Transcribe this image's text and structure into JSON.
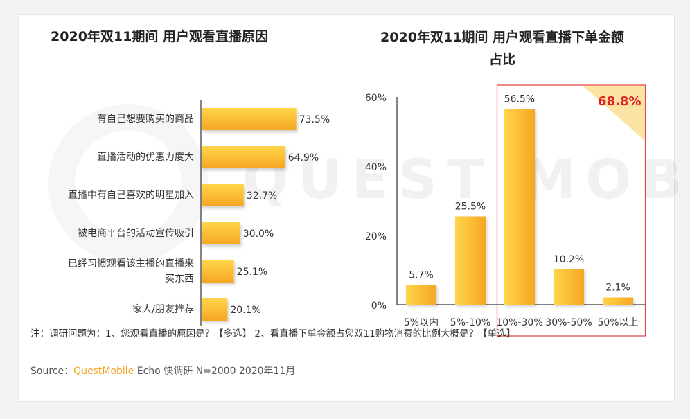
{
  "chart_data": [
    {
      "type": "bar",
      "orientation": "horizontal",
      "title": "2020年双11期间 用户观看直播原因",
      "categories": [
        "有自己想要购买的商品",
        "直播活动的优惠力度大",
        "直播中有自己喜欢的明星加入",
        "被电商平台的活动宣传吸引",
        "已经习惯观看该主播的直播来买东西",
        "家人/朋友推荐"
      ],
      "category_lines": [
        [
          "有自己想要购买的商品"
        ],
        [
          "直播活动的优惠力度大"
        ],
        [
          "直播中有自己喜欢的明星加入"
        ],
        [
          "被电商平台的活动宣传吸引"
        ],
        [
          "已经习惯观看该主播的直播来",
          "买东西"
        ],
        [
          "家人/朋友推荐"
        ]
      ],
      "values": [
        73.5,
        64.9,
        32.7,
        30.0,
        25.1,
        20.1
      ],
      "value_labels": [
        "73.5%",
        "64.9%",
        "32.7%",
        "30.0%",
        "25.1%",
        "20.1%"
      ],
      "xlim": [
        0,
        100
      ],
      "grid": false
    },
    {
      "type": "bar",
      "orientation": "vertical",
      "title": "2020年双11期间 用户观看直播下单金额占比",
      "title_lines": [
        "2020年双11期间 用户观看直播下单金额",
        "占比"
      ],
      "categories": [
        "5%以内",
        "5%-10%",
        "10%-30%",
        "30%-50%",
        "50%以上"
      ],
      "values": [
        5.7,
        25.5,
        56.5,
        10.2,
        2.1
      ],
      "value_labels": [
        "5.7%",
        "25.5%",
        "56.5%",
        "10.2%",
        "2.1%"
      ],
      "yticks": [
        "0%",
        "20%",
        "40%",
        "60%"
      ],
      "ylim": [
        0,
        60
      ],
      "grid": false,
      "highlight": {
        "label": "68.8%",
        "range": [
          "10%-30%",
          "50%以上"
        ]
      }
    }
  ],
  "watermark": "QUEST MOBILE",
  "note": "注：调研问题为：1、您观看直播的原因是？【多选】  2、看直播下单金额占您双11购物消费的比例大概是？【单选】",
  "source": {
    "prefix": "Source：",
    "brand": "QuestMobile",
    "suffix": "Echo 快调研 N=2000 2020年11月"
  },
  "colors": {
    "bar_top": "#ffd54a",
    "bar_bottom": "#f6a623",
    "highlight_border": "#e34a4a",
    "highlight_text": "#e02020",
    "triangle": "#fbe3a4",
    "brand": "#f5a21b"
  }
}
